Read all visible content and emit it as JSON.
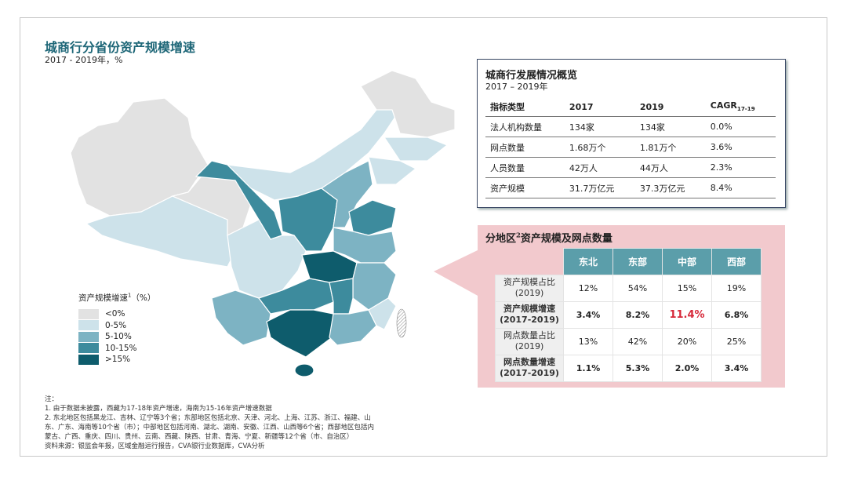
{
  "header": {
    "title": "城商行分省份资产规模增速",
    "subtitle": "2017 - 2019年，%"
  },
  "legend": {
    "title": "资产规模增速",
    "title_sup": "1",
    "title_unit": "（%）",
    "items": [
      {
        "label": "<0%",
        "color": "#e2e2e2"
      },
      {
        "label": "0-5%",
        "color": "#cde2ea"
      },
      {
        "label": "5-10%",
        "color": "#7db3c3"
      },
      {
        "label": "10-15%",
        "color": "#3d8b9d"
      },
      {
        "label": ">15%",
        "color": "#0e5c6c"
      }
    ]
  },
  "overview": {
    "title": "城商行发展情况概览",
    "subtitle": "2017 – 2019年",
    "headers": [
      "指标类型",
      "2017",
      "2019",
      "CAGR"
    ],
    "cagr_sub": "17-19",
    "rows": [
      [
        "法人机构数量",
        "134家",
        "134家",
        "0.0%"
      ],
      [
        "网点数量",
        "1.68万个",
        "1.81万个",
        "3.6%"
      ],
      [
        "人员数量",
        "42万人",
        "44万人",
        "2.3%"
      ],
      [
        "资产规模",
        "31.7万亿元",
        "37.3万亿元",
        "8.4%"
      ]
    ]
  },
  "regional": {
    "title_pre": "分地区",
    "title_sup": "2",
    "title_post": "资产规模及网点数量",
    "headers": [
      "东北",
      "东部",
      "中部",
      "西部"
    ],
    "rows": [
      {
        "label": [
          "资产规模占比",
          "(2019)"
        ],
        "cells": [
          "12%",
          "54%",
          "15%",
          "19%"
        ]
      },
      {
        "label": [
          "资产规模增速",
          "(2017-2019)"
        ],
        "cells": [
          "3.4%",
          "8.2%",
          "11.4%",
          "6.8%"
        ]
      },
      {
        "label": [
          "网点数量占比",
          "(2019)"
        ],
        "cells": [
          "13%",
          "42%",
          "20%",
          "25%"
        ]
      },
      {
        "label": [
          "网点数量增速",
          "(2017-2019)"
        ],
        "cells": [
          "1.1%",
          "5.3%",
          "2.0%",
          "3.4%"
        ]
      }
    ]
  },
  "notes": {
    "heading": "注：",
    "lines": [
      "1.  由于数据未披露，西藏为17-18年资产增速，海南为15-16年资产增速数据",
      "2.  东北地区包括黑龙江、吉林、辽宁等3个省；东部地区包括北京、天津、河北、上海、江苏、浙江、福建、山",
      "东、广东、海南等10个省（市）；中部地区包括河南、湖北、湖南、安徽、江西、山西等6个省；西部地区包括内",
      "蒙古、广西、重庆、四川、贵州、云南、西藏、陕西、甘肃、青海、宁夏、新疆等12个省（市、自治区）",
      "资料来源：银监会年报，区域金融运行报告，CVA银行业数据库，CVA分析"
    ]
  }
}
